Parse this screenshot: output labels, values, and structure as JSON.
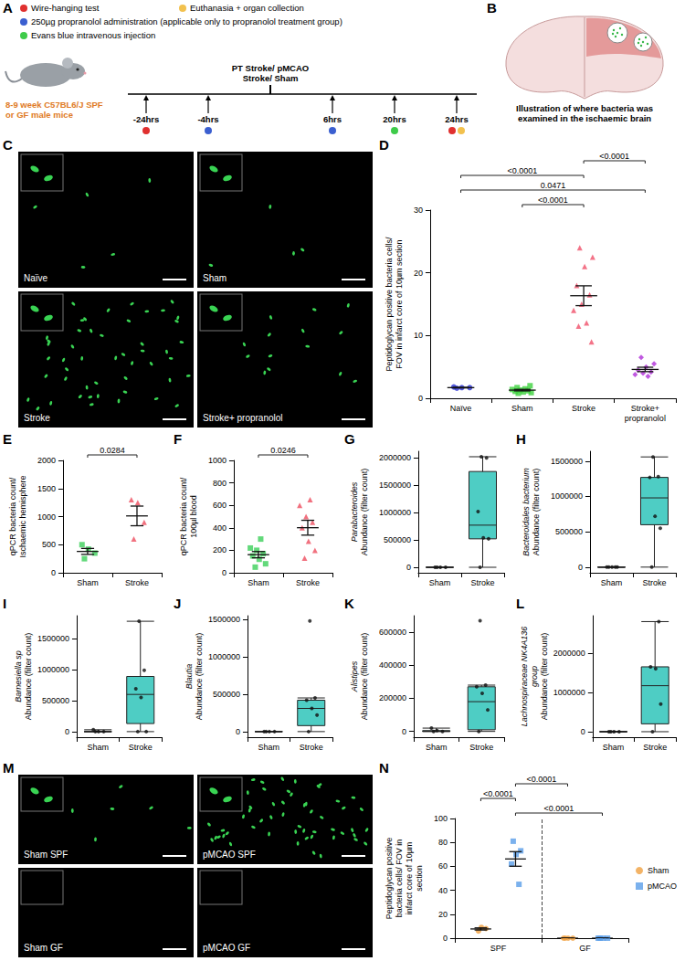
{
  "timeline": {
    "letter": "A",
    "legend": [
      {
        "text": "Wire-hanging test",
        "color": "#e0302f"
      },
      {
        "text": "Euthanasia + organ collection",
        "color": "#f2c14e"
      },
      {
        "text": "250µg propranolol administration (applicable only to propranolol treatment group)",
        "color": "#3b5fd0"
      },
      {
        "text": "Evans blue intravenous injection",
        "color": "#3ecb4a"
      }
    ],
    "subject": "8-9 week C57BL6/J SPF or GF male mice",
    "events": [
      {
        "time": "-24hrs",
        "markers": [
          "Wire-hanging test"
        ]
      },
      {
        "time": "-4hrs",
        "markers": [
          "250µg propranolol administration (applicable only to propranolol treatment group)"
        ]
      },
      {
        "time": "PT Stroke/ pMCAO Stroke/ Sham",
        "markers": []
      },
      {
        "time": "6hrs",
        "markers": [
          "250µg propranolol administration (applicable only to propranolol treatment group)"
        ]
      },
      {
        "time": "20hrs",
        "markers": [
          "Evans blue intravenous injection"
        ]
      },
      {
        "time": "24hrs",
        "markers": [
          "Wire-hanging test",
          "Euthanasia + organ collection"
        ]
      }
    ]
  },
  "brain": {
    "letter": "B",
    "caption": "Illustration of where bacteria was examined in the ischaemic brain"
  },
  "micrographs": [
    {
      "letter": "C",
      "images": [
        {
          "label": "Naïve",
          "chart": "D",
          "group": "Naïve"
        },
        {
          "label": "Sham",
          "chart": "D",
          "group": "Sham"
        },
        {
          "label": "Stroke",
          "chart": "D",
          "group": "Stroke"
        },
        {
          "label": "Stroke+ propranolol",
          "chart": "D",
          "group": "Stroke+ propranolol"
        }
      ]
    },
    {
      "letter": "M",
      "images": [
        {
          "label": "Sham SPF",
          "chart": "N",
          "category": "SPF",
          "series": "Sham"
        },
        {
          "label": "pMCAO SPF",
          "chart": "N",
          "category": "SPF",
          "series": "pMCAO"
        },
        {
          "label": "Sham GF",
          "chart": "N",
          "category": "GF",
          "series": "Sham"
        },
        {
          "label": "pMCAO GF",
          "chart": "N",
          "category": "GF",
          "series": "pMCAO"
        }
      ]
    }
  ],
  "chart_data": [
    {
      "letter": "D",
      "type": "scatter",
      "ylabel": "Peptidoglycan positive bacteria cells/ FOV in infarct core of 10µm section",
      "categories": [
        "Naïve",
        "Sham",
        "Stroke",
        "Stroke+ propranolol"
      ],
      "groups": [
        {
          "category": "Naïve",
          "color": "#2b33d6",
          "marker": "circle",
          "values": [
            1.6,
            1.7,
            1.7,
            1.8
          ],
          "mean": 1.7,
          "sem": 0.05
        },
        {
          "category": "Sham",
          "color": "#3fd23f",
          "marker": "square",
          "values": [
            0.8,
            0.9,
            1.0,
            1.1,
            1.2,
            1.3,
            1.4,
            1.5,
            1.7,
            2.0
          ],
          "mean": 1.3,
          "sem": 0.12
        },
        {
          "category": "Stroke",
          "color": "#f0506a",
          "marker": "triangle",
          "values": [
            24,
            22.5,
            21,
            18,
            16.5,
            15,
            14,
            12,
            11.5,
            9
          ],
          "mean": 16.35,
          "sem": 1.58
        },
        {
          "category": "Stroke+ propranolol",
          "color": "#b02fd8",
          "marker": "diamond",
          "values": [
            6.5,
            5.5,
            5,
            4.5,
            4.2,
            4,
            3.8,
            3.5
          ],
          "mean": 4.6,
          "sem": 0.35
        }
      ],
      "ylim": [
        0,
        30
      ],
      "yticks": [
        0,
        10,
        20,
        30
      ],
      "grid": false,
      "comparisons": [
        {
          "from": "Stroke",
          "to": "Stroke+ propranolol",
          "label": "<0.0001"
        },
        {
          "from": "Naïve",
          "to": "Stroke",
          "label": "<0.0001"
        },
        {
          "from": "Naïve",
          "to": "Stroke+ propranolol",
          "label": "0.0471"
        },
        {
          "from": "Sham",
          "to": "Stroke",
          "label": "<0.0001"
        }
      ]
    },
    {
      "letter": "E",
      "type": "scatter",
      "ylabel": "qPCR bacteria count/ Ischaemic hemisphere",
      "categories": [
        "Sham",
        "Stroke"
      ],
      "groups": [
        {
          "category": "Sham",
          "color": "#3ccf5a",
          "marker": "square",
          "values": [
            250,
            350,
            420,
            500
          ],
          "mean": 380,
          "sem": 53
        },
        {
          "category": "Stroke",
          "color": "#ee4d5f",
          "marker": "triangle",
          "values": [
            600,
            900,
            1250,
            1300
          ],
          "mean": 1012,
          "sem": 175
        }
      ],
      "ylim": [
        0,
        2000
      ],
      "yticks": [
        0,
        500,
        1000,
        1500,
        2000
      ],
      "grid": false,
      "comparisons": [
        {
          "from": "Sham",
          "to": "Stroke",
          "label": "0.0284"
        }
      ]
    },
    {
      "letter": "F",
      "type": "scatter",
      "ylabel": "qPCR bacteria count/ 100µl blood",
      "categories": [
        "Sham",
        "Stroke"
      ],
      "groups": [
        {
          "category": "Sham",
          "color": "#3ccf5a",
          "marker": "square",
          "values": [
            50,
            80,
            120,
            150,
            170,
            200,
            220,
            300
          ],
          "mean": 161,
          "sem": 28
        },
        {
          "category": "Stroke",
          "color": "#ee4d5f",
          "marker": "triangle",
          "values": [
            130,
            200,
            280,
            400,
            450,
            500,
            600,
            650
          ],
          "mean": 401,
          "sem": 66
        }
      ],
      "ylim": [
        0,
        1000
      ],
      "yticks": [
        0,
        200,
        400,
        600,
        800,
        1000
      ],
      "grid": false,
      "comparisons": [
        {
          "from": "Sham",
          "to": "Stroke",
          "label": "0.0246"
        }
      ]
    },
    {
      "letter": "G",
      "type": "box",
      "taxon": "Parabacteroides",
      "ylabel": "Abundance (filter count)",
      "categories": [
        "Sham",
        "Stroke"
      ],
      "color": "#4ecdc4",
      "box": [
        [
          0,
          0,
          0,
          0,
          0
        ],
        [
          0,
          520000,
          770000,
          1750000,
          2020000
        ]
      ],
      "points": [
        [
          0,
          0,
          0,
          0
        ],
        [
          0,
          520000,
          540000,
          1020000,
          2000000,
          2020000
        ]
      ],
      "ylim": [
        -100000,
        2120000
      ],
      "yticks": [
        0,
        500000,
        1000000,
        1500000,
        2000000
      ],
      "grid": false
    },
    {
      "letter": "H",
      "type": "box",
      "taxon": "Bacteroidales bacterium",
      "ylabel": "Abundance (filter count)",
      "categories": [
        "Sham",
        "Stroke"
      ],
      "color": "#4ecdc4",
      "box": [
        [
          0,
          0,
          0,
          0,
          0
        ],
        [
          0,
          600000,
          980000,
          1270000,
          1560000
        ]
      ],
      "points": [
        [
          0,
          0,
          0,
          0,
          0
        ],
        [
          0,
          550000,
          720000,
          1270000,
          1280000,
          1560000
        ]
      ],
      "ylim": [
        -80000,
        1640000
      ],
      "yticks": [
        0,
        500000,
        1000000,
        1500000
      ],
      "grid": false
    },
    {
      "letter": "I",
      "type": "box",
      "taxon": "Barnesiella sp",
      "ylabel": "Abundance (filter count)",
      "categories": [
        "Sham",
        "Stroke"
      ],
      "color": "#4ecdc4",
      "box": [
        [
          0,
          0,
          0,
          0,
          30000
        ],
        [
          0,
          130000,
          600000,
          890000,
          1780000
        ]
      ],
      "points": [
        [
          0,
          0,
          0,
          30000
        ],
        [
          0,
          0,
          550000,
          690000,
          990000,
          1780000
        ]
      ],
      "ylim": [
        -90000,
        1870000
      ],
      "yticks": [
        0,
        500000,
        1000000,
        1500000
      ],
      "grid": false
    },
    {
      "letter": "J",
      "type": "box",
      "taxon": "Blautia",
      "ylabel": "Abundance (filter count)",
      "categories": [
        "Sham",
        "Stroke"
      ],
      "color": "#4ecdc4",
      "box": [
        [
          0,
          0,
          0,
          0,
          0
        ],
        [
          0,
          80000,
          310000,
          420000,
          450000
        ]
      ],
      "points": [
        [
          0,
          0,
          0,
          0
        ],
        [
          0,
          220000,
          310000,
          420000,
          450000,
          1480000
        ]
      ],
      "ylim": [
        -75000,
        1550000
      ],
      "yticks": [
        0,
        500000,
        1000000,
        1500000
      ],
      "grid": false
    },
    {
      "letter": "K",
      "type": "box",
      "taxon": "Alistipes",
      "ylabel": "Abundance (filter count)",
      "categories": [
        "Sham",
        "Stroke"
      ],
      "color": "#4ecdc4",
      "box": [
        [
          0,
          0,
          0,
          5000,
          20000
        ],
        [
          0,
          10000,
          180000,
          270000,
          280000
        ]
      ],
      "points": [
        [
          0,
          0,
          5000,
          20000
        ],
        [
          0,
          130000,
          230000,
          270000,
          280000,
          670000
        ]
      ],
      "ylim": [
        -35000,
        700000
      ],
      "yticks": [
        0,
        200000,
        400000,
        600000
      ],
      "grid": false
    },
    {
      "letter": "L",
      "type": "box",
      "taxon": "Lachnospiraceae NK4A136 group",
      "ylabel": "Abundance (filter count)",
      "categories": [
        "Sham",
        "Stroke"
      ],
      "color": "#4ecdc4",
      "box": [
        [
          0,
          0,
          0,
          0,
          0
        ],
        [
          0,
          200000,
          1170000,
          1650000,
          2800000
        ]
      ],
      "points": [
        [
          0,
          0,
          0,
          0
        ],
        [
          0,
          700000,
          1600000,
          1650000,
          2800000
        ]
      ],
      "ylim": [
        -140000,
        2950000
      ],
      "yticks": [
        0,
        1000000,
        2000000
      ],
      "grid": false
    },
    {
      "letter": "N",
      "type": "scatter",
      "ylabel": "Peptidoglycan positive bacteria cells/ FOV in infarct core of 10µm section",
      "categories": [
        "SPF",
        "GF"
      ],
      "series": [
        {
          "name": "Sham",
          "color": "#f0a040",
          "marker": "circle",
          "values": [
            [
              6,
              8,
              9
            ],
            [
              0,
              0,
              0,
              0
            ]
          ],
          "mean": [
            7.7,
            0
          ],
          "sem": [
            0.9,
            0
          ]
        },
        {
          "name": "pMCAO",
          "color": "#5a9ee8",
          "marker": "square",
          "values": [
            [
              81,
              73,
              70,
              62,
              45
            ],
            [
              0,
              0,
              0,
              0
            ]
          ],
          "mean": [
            66.2,
            0
          ],
          "sem": [
            6.1,
            0
          ]
        }
      ],
      "legend": "right",
      "ylim": [
        0,
        100
      ],
      "yticks": [
        0,
        20,
        40,
        60,
        80,
        100
      ],
      "grid": false,
      "comparisons": [
        {
          "from": {
            "category": "SPF",
            "series": "pMCAO"
          },
          "to": {
            "category": "GF",
            "series": "Sham"
          },
          "label": "<0.0001"
        },
        {
          "from": {
            "category": "SPF",
            "series": "Sham"
          },
          "to": {
            "category": "SPF",
            "series": "pMCAO"
          },
          "label": "<0.0001"
        },
        {
          "from": {
            "category": "SPF",
            "series": "pMCAO"
          },
          "to": {
            "category": "GF",
            "series": "pMCAO"
          },
          "label": "<0.0001"
        }
      ]
    }
  ]
}
